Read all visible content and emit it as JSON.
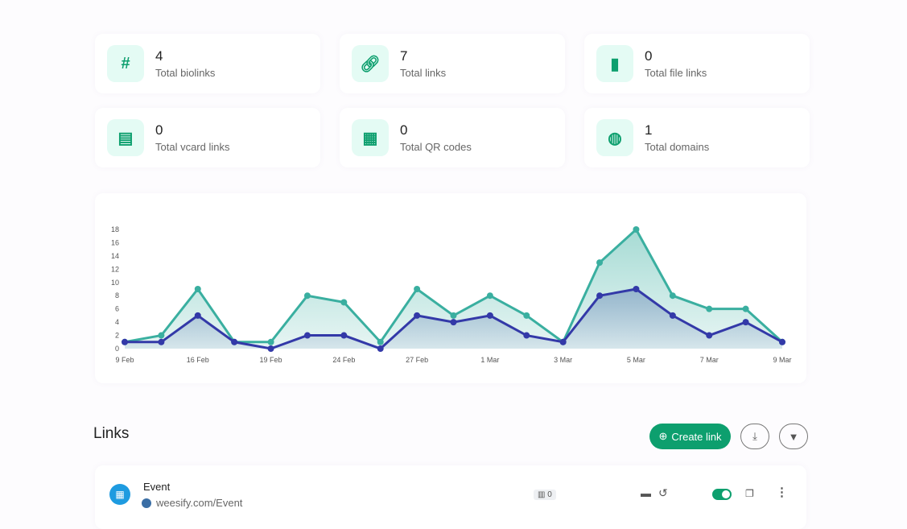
{
  "stats": [
    {
      "value": "4",
      "label": "Total biolinks",
      "icon": "hash-icon"
    },
    {
      "value": "7",
      "label": "Total links",
      "icon": "link-icon"
    },
    {
      "value": "0",
      "label": "Total file links",
      "icon": "file-icon"
    },
    {
      "value": "0",
      "label": "Total vcard links",
      "icon": "vcard-icon"
    },
    {
      "value": "0",
      "label": "Total QR codes",
      "icon": "qrcode-icon"
    },
    {
      "value": "1",
      "label": "Total domains",
      "icon": "globe-icon"
    }
  ],
  "chart_data": {
    "type": "area",
    "categories": [
      "9 Feb",
      "",
      "16 Feb",
      "",
      "19 Feb",
      "",
      "24 Feb",
      "",
      "27 Feb",
      "",
      "1 Mar",
      "",
      "3 Mar",
      "",
      "5 Mar",
      "",
      "7 Mar",
      "",
      "9 Mar"
    ],
    "series": [
      {
        "values": [
          1,
          2,
          9,
          1,
          1,
          8,
          7,
          1,
          9,
          5,
          8,
          5,
          1,
          13,
          18,
          8,
          6,
          6,
          1
        ],
        "color": "#3aafa0"
      },
      {
        "values": [
          1,
          1,
          5,
          1,
          0,
          2,
          2,
          0,
          5,
          4,
          5,
          2,
          1,
          8,
          9,
          5,
          2,
          4,
          1
        ],
        "color": "#3339a8"
      }
    ],
    "yticks": [
      0,
      2,
      4,
      6,
      8,
      10,
      12,
      14,
      16,
      18
    ],
    "ylim": [
      0,
      18
    ]
  },
  "links": {
    "title": "Links",
    "create_label": "Create link",
    "items": [
      {
        "name": "Event",
        "url": "weesify.com/Event",
        "clicks": "0",
        "enabled": true
      }
    ]
  }
}
